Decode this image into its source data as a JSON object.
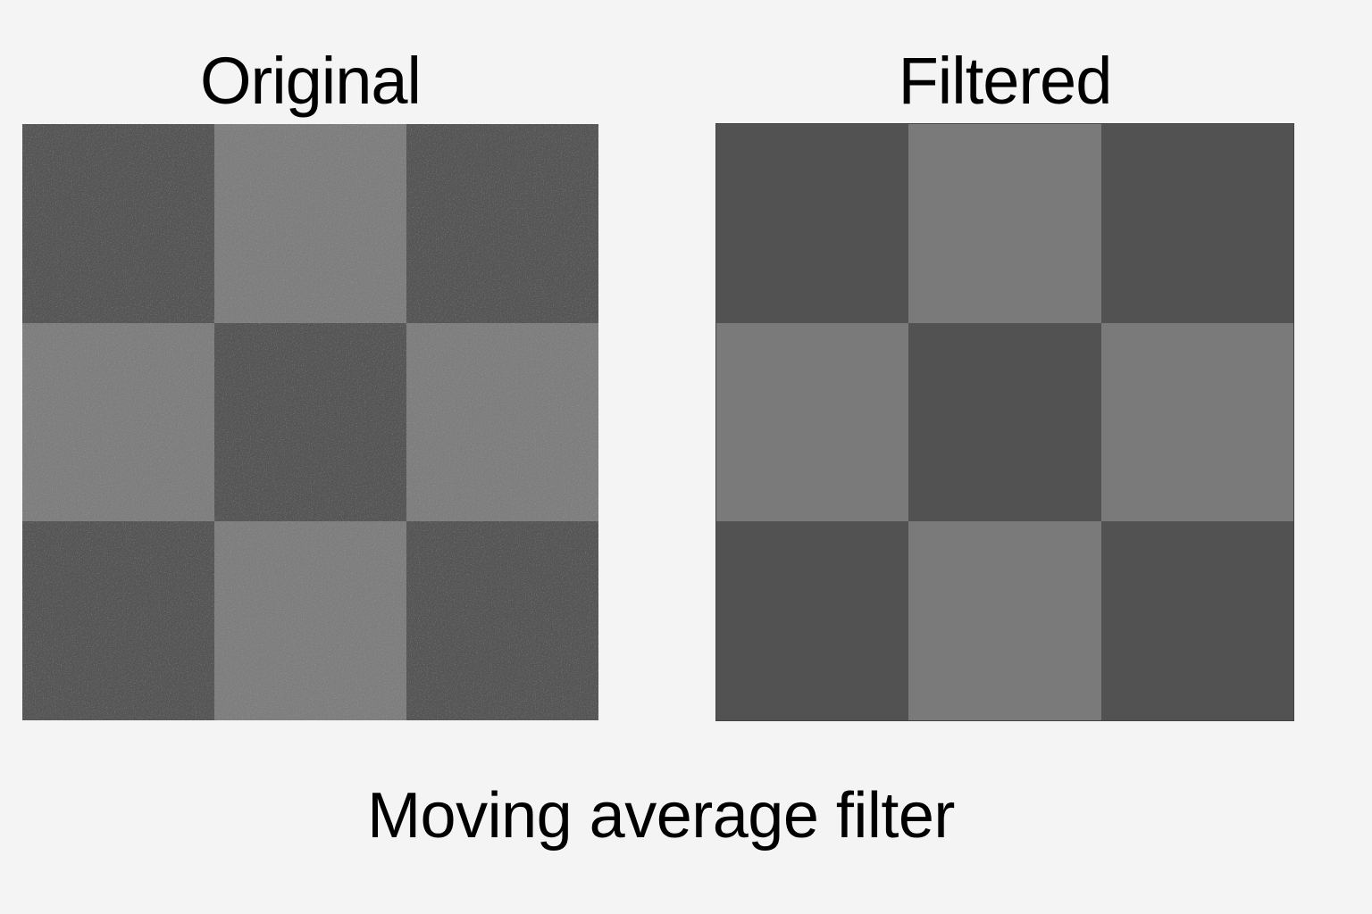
{
  "panels": {
    "original_title": "Original",
    "filtered_title": "Filtered"
  },
  "caption": "Moving average filter",
  "colors": {
    "background": "#f4f4f4",
    "original_dark": "#555555",
    "original_light": "#7e7e7e",
    "filtered_dark": "#525252",
    "filtered_light": "#7a7a7a"
  },
  "pattern": [
    [
      "dark",
      "light",
      "dark"
    ],
    [
      "light",
      "dark",
      "light"
    ],
    [
      "dark",
      "light",
      "dark"
    ]
  ]
}
